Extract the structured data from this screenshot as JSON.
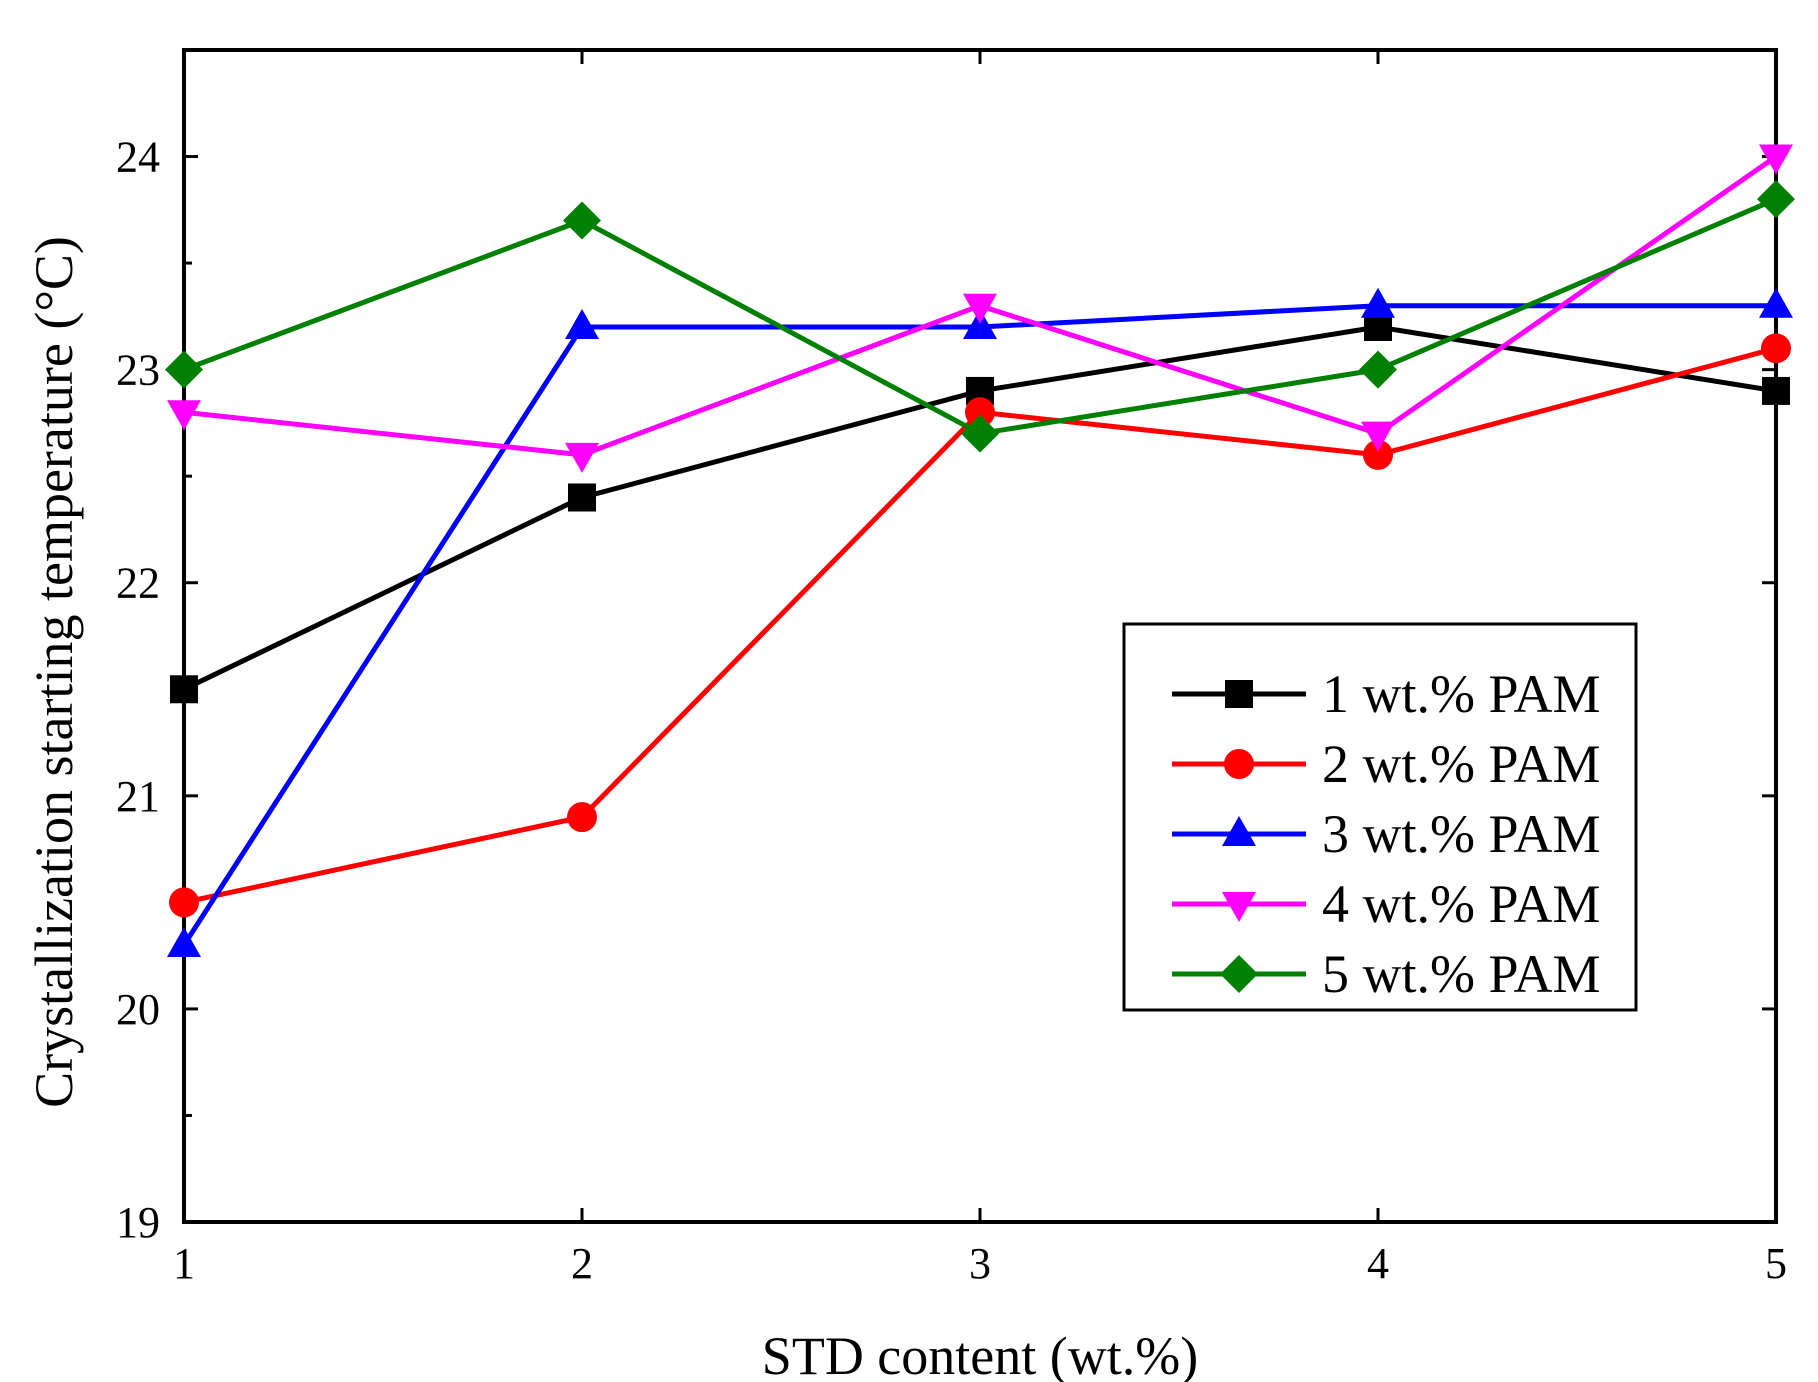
{
  "chart_data": {
    "type": "line",
    "xlabel": "STD content (wt.%)",
    "ylabel": "Crystallization starting temperature (°C)",
    "x": [
      1,
      2,
      3,
      4,
      5
    ],
    "xlim": [
      1,
      5
    ],
    "ylim": [
      19,
      24.5
    ],
    "xticks": [
      1,
      2,
      3,
      4,
      5
    ],
    "yticks": [
      19,
      20,
      21,
      22,
      23,
      24
    ],
    "grid": false,
    "legend_position": "center-right",
    "series": [
      {
        "name": "1 wt.% PAM",
        "color": "#000000",
        "marker": "square",
        "values": [
          21.5,
          22.4,
          22.9,
          23.2,
          22.9
        ]
      },
      {
        "name": "2 wt.% PAM",
        "color": "#ff0000",
        "marker": "circle",
        "values": [
          20.5,
          20.9,
          22.8,
          22.6,
          23.1
        ]
      },
      {
        "name": "3 wt.% PAM",
        "color": "#0000ff",
        "marker": "triangle-up",
        "values": [
          20.3,
          23.2,
          23.2,
          23.3,
          23.3
        ]
      },
      {
        "name": "4 wt.% PAM",
        "color": "#ff00ff",
        "marker": "triangle-down",
        "values": [
          22.8,
          22.6,
          23.3,
          22.7,
          24.0
        ]
      },
      {
        "name": "5 wt.% PAM",
        "color": "#008000",
        "marker": "diamond",
        "values": [
          23.0,
          23.7,
          22.7,
          23.0,
          23.8
        ]
      }
    ]
  }
}
